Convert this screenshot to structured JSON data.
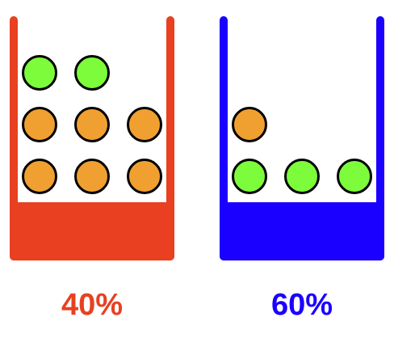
{
  "colors": {
    "orange_ball": "#F0A030",
    "green_ball": "#7CFC3A",
    "ball_outline": "#000000"
  },
  "containers": [
    {
      "color": "#E84020",
      "percent_label": "40%",
      "balls_bottom_to_top": [
        [
          "orange",
          "orange",
          "orange"
        ],
        [
          "orange",
          "orange",
          "orange"
        ],
        [
          "green",
          "green"
        ]
      ]
    },
    {
      "color": "#1A00FF",
      "percent_label": "60%",
      "balls_bottom_to_top": [
        [
          "green",
          "green",
          "green"
        ],
        [
          "orange"
        ]
      ]
    }
  ]
}
